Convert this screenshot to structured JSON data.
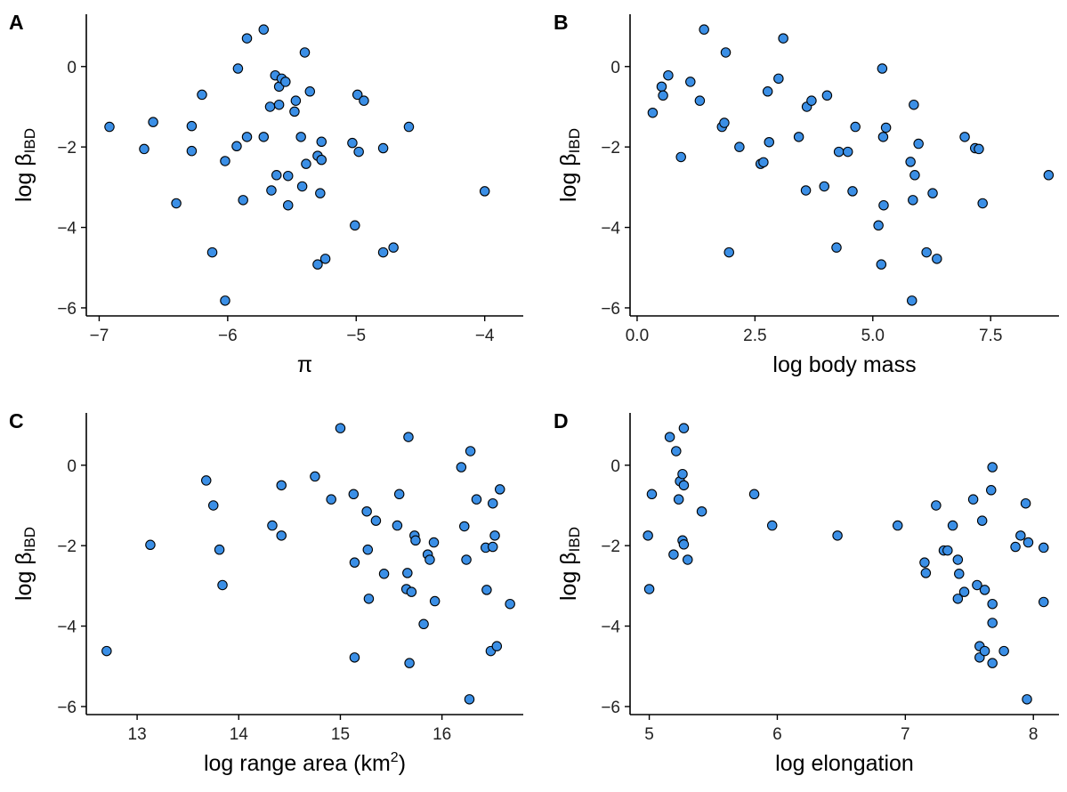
{
  "colors": {
    "point_fill": "#3b8fe6",
    "point_stroke": "#000000"
  },
  "chart_data": [
    {
      "panel": "A",
      "type": "scatter",
      "xlabel_parts": {
        "main": "π"
      },
      "ylabel_parts": {
        "main": "log β",
        "sub": "IBD"
      },
      "xlim": [
        -7.1,
        -3.7
      ],
      "ylim": [
        -6.2,
        1.3
      ],
      "xticks": [
        -7,
        -6,
        -5,
        -4
      ],
      "xtick_labels": [
        "−7",
        "−6",
        "−5",
        "−4"
      ],
      "yticks": [
        0,
        -2,
        -4,
        -6
      ],
      "ytick_labels": [
        "0",
        "−2",
        "−4",
        "−6"
      ],
      "points": [
        [
          -6.92,
          -1.5
        ],
        [
          -6.65,
          -2.05
        ],
        [
          -6.58,
          -1.38
        ],
        [
          -6.4,
          -3.4
        ],
        [
          -6.28,
          -1.48
        ],
        [
          -6.28,
          -2.1
        ],
        [
          -6.2,
          -0.7
        ],
        [
          -6.12,
          -4.62
        ],
        [
          -6.02,
          -5.82
        ],
        [
          -6.02,
          -2.35
        ],
        [
          -5.93,
          -1.98
        ],
        [
          -5.92,
          -0.05
        ],
        [
          -5.88,
          -3.32
        ],
        [
          -5.85,
          -1.75
        ],
        [
          -5.85,
          0.7
        ],
        [
          -5.72,
          0.92
        ],
        [
          -5.72,
          -1.75
        ],
        [
          -5.67,
          -1.0
        ],
        [
          -5.66,
          -3.08
        ],
        [
          -5.63,
          -0.22
        ],
        [
          -5.62,
          -2.7
        ],
        [
          -5.6,
          -0.5
        ],
        [
          -5.6,
          -0.95
        ],
        [
          -5.58,
          -0.3
        ],
        [
          -5.55,
          -0.38
        ],
        [
          -5.53,
          -2.72
        ],
        [
          -5.53,
          -3.45
        ],
        [
          -5.48,
          -1.12
        ],
        [
          -5.47,
          -0.85
        ],
        [
          -5.43,
          -1.75
        ],
        [
          -5.42,
          -2.98
        ],
        [
          -5.4,
          0.35
        ],
        [
          -5.39,
          -2.42
        ],
        [
          -5.36,
          -0.62
        ],
        [
          -5.3,
          -4.92
        ],
        [
          -5.3,
          -2.22
        ],
        [
          -5.28,
          -3.15
        ],
        [
          -5.27,
          -2.32
        ],
        [
          -5.27,
          -1.87
        ],
        [
          -5.24,
          -4.78
        ],
        [
          -5.03,
          -1.9
        ],
        [
          -5.01,
          -3.95
        ],
        [
          -4.99,
          -0.7
        ],
        [
          -4.98,
          -2.12
        ],
        [
          -4.94,
          -0.85
        ],
        [
          -4.79,
          -4.62
        ],
        [
          -4.79,
          -2.03
        ],
        [
          -4.71,
          -4.5
        ],
        [
          -4.59,
          -1.5
        ],
        [
          -4.0,
          -3.1
        ]
      ]
    },
    {
      "panel": "B",
      "type": "scatter",
      "xlabel_parts": {
        "main": "log body mass"
      },
      "ylabel_parts": {
        "main": "log β",
        "sub": "IBD"
      },
      "xlim": [
        -0.15,
        8.95
      ],
      "ylim": [
        -6.2,
        1.3
      ],
      "xticks": [
        0,
        2.5,
        5,
        7.5
      ],
      "xtick_labels": [
        "0.0",
        "2.5",
        "5.0",
        "7.5"
      ],
      "yticks": [
        0,
        -2,
        -4,
        -6
      ],
      "ytick_labels": [
        "0",
        "−2",
        "−4",
        "−6"
      ],
      "points": [
        [
          0.33,
          -1.15
        ],
        [
          0.52,
          -0.5
        ],
        [
          0.55,
          -0.72
        ],
        [
          0.66,
          -0.22
        ],
        [
          0.93,
          -2.25
        ],
        [
          1.13,
          -0.38
        ],
        [
          1.33,
          -0.85
        ],
        [
          1.42,
          0.92
        ],
        [
          1.8,
          -1.5
        ],
        [
          1.85,
          -1.4
        ],
        [
          1.88,
          0.35
        ],
        [
          1.95,
          -4.62
        ],
        [
          2.17,
          -2.0
        ],
        [
          2.62,
          -2.42
        ],
        [
          2.68,
          -2.38
        ],
        [
          2.77,
          -0.62
        ],
        [
          2.8,
          -1.88
        ],
        [
          3.0,
          -0.3
        ],
        [
          3.1,
          0.7
        ],
        [
          3.43,
          -1.75
        ],
        [
          3.58,
          -3.08
        ],
        [
          3.6,
          -1.0
        ],
        [
          3.7,
          -0.85
        ],
        [
          3.97,
          -2.98
        ],
        [
          4.03,
          -0.72
        ],
        [
          4.23,
          -4.5
        ],
        [
          4.28,
          -2.12
        ],
        [
          4.47,
          -2.12
        ],
        [
          4.57,
          -3.1
        ],
        [
          4.63,
          -1.5
        ],
        [
          5.12,
          -3.95
        ],
        [
          5.18,
          -4.92
        ],
        [
          5.2,
          -0.05
        ],
        [
          5.22,
          -1.75
        ],
        [
          5.23,
          -3.45
        ],
        [
          5.28,
          -1.52
        ],
        [
          5.8,
          -2.37
        ],
        [
          5.83,
          -5.82
        ],
        [
          5.85,
          -3.32
        ],
        [
          5.87,
          -0.95
        ],
        [
          5.89,
          -2.7
        ],
        [
          5.97,
          -1.92
        ],
        [
          6.14,
          -4.62
        ],
        [
          6.27,
          -3.15
        ],
        [
          6.36,
          -4.78
        ],
        [
          6.95,
          -1.75
        ],
        [
          7.17,
          -2.03
        ],
        [
          7.25,
          -2.05
        ],
        [
          7.33,
          -3.4
        ],
        [
          8.73,
          -2.7
        ]
      ]
    },
    {
      "panel": "C",
      "type": "scatter",
      "xlabel_parts": {
        "main": "log range area (km",
        "sup": "2",
        "after": ")"
      },
      "ylabel_parts": {
        "main": "log β",
        "sub": "IBD"
      },
      "xlim": [
        12.5,
        16.8
      ],
      "ylim": [
        -6.2,
        1.3
      ],
      "xticks": [
        13,
        14,
        15,
        16
      ],
      "xtick_labels": [
        "13",
        "14",
        "15",
        "16"
      ],
      "yticks": [
        0,
        -2,
        -4,
        -6
      ],
      "ytick_labels": [
        "0",
        "−2",
        "−4",
        "−6"
      ],
      "points": [
        [
          12.7,
          -4.62
        ],
        [
          13.13,
          -1.98
        ],
        [
          13.68,
          -0.38
        ],
        [
          13.75,
          -1.0
        ],
        [
          13.81,
          -2.1
        ],
        [
          13.84,
          -2.98
        ],
        [
          14.33,
          -1.5
        ],
        [
          14.42,
          -0.5
        ],
        [
          14.42,
          -1.75
        ],
        [
          14.75,
          -0.28
        ],
        [
          14.91,
          -0.85
        ],
        [
          15.0,
          0.92
        ],
        [
          15.13,
          -0.72
        ],
        [
          15.14,
          -2.42
        ],
        [
          15.14,
          -4.78
        ],
        [
          15.26,
          -1.15
        ],
        [
          15.27,
          -2.1
        ],
        [
          15.28,
          -3.32
        ],
        [
          15.35,
          -1.38
        ],
        [
          15.43,
          -2.7
        ],
        [
          15.56,
          -1.5
        ],
        [
          15.58,
          -0.72
        ],
        [
          15.65,
          -3.08
        ],
        [
          15.66,
          -2.68
        ],
        [
          15.67,
          0.7
        ],
        [
          15.68,
          -4.92
        ],
        [
          15.7,
          -3.15
        ],
        [
          15.73,
          -1.75
        ],
        [
          15.74,
          -1.87
        ],
        [
          15.82,
          -3.95
        ],
        [
          15.86,
          -2.22
        ],
        [
          15.88,
          -2.35
        ],
        [
          15.92,
          -1.92
        ],
        [
          15.93,
          -3.38
        ],
        [
          16.19,
          -0.05
        ],
        [
          16.22,
          -1.52
        ],
        [
          16.24,
          -2.35
        ],
        [
          16.27,
          -5.82
        ],
        [
          16.28,
          0.35
        ],
        [
          16.34,
          -0.85
        ],
        [
          16.43,
          -2.05
        ],
        [
          16.44,
          -3.1
        ],
        [
          16.48,
          -4.62
        ],
        [
          16.5,
          -2.03
        ],
        [
          16.5,
          -0.95
        ],
        [
          16.52,
          -1.75
        ],
        [
          16.54,
          -4.5
        ],
        [
          16.57,
          -0.6
        ],
        [
          16.67,
          -3.45
        ]
      ]
    },
    {
      "panel": "D",
      "type": "scatter",
      "xlabel_parts": {
        "main": "log elongation"
      },
      "ylabel_parts": {
        "main": "log β",
        "sub": "IBD"
      },
      "xlim": [
        4.85,
        8.2
      ],
      "ylim": [
        -6.2,
        1.3
      ],
      "xticks": [
        5,
        6,
        7,
        8
      ],
      "xtick_labels": [
        "5",
        "6",
        "7",
        "8"
      ],
      "yticks": [
        0,
        -2,
        -4,
        -6
      ],
      "ytick_labels": [
        "0",
        "−2",
        "−4",
        "−6"
      ],
      "points": [
        [
          4.99,
          -1.75
        ],
        [
          5.0,
          -3.08
        ],
        [
          5.02,
          -0.72
        ],
        [
          5.16,
          0.7
        ],
        [
          5.19,
          -2.22
        ],
        [
          5.21,
          0.35
        ],
        [
          5.23,
          -0.85
        ],
        [
          5.24,
          -0.4
        ],
        [
          5.26,
          -1.87
        ],
        [
          5.26,
          -0.22
        ],
        [
          5.27,
          0.92
        ],
        [
          5.27,
          -1.97
        ],
        [
          5.27,
          -0.5
        ],
        [
          5.3,
          -2.35
        ],
        [
          5.41,
          -1.15
        ],
        [
          5.82,
          -0.72
        ],
        [
          5.96,
          -1.5
        ],
        [
          6.47,
          -1.75
        ],
        [
          6.94,
          -1.5
        ],
        [
          7.15,
          -2.42
        ],
        [
          7.16,
          -2.68
        ],
        [
          7.24,
          -1.0
        ],
        [
          7.3,
          -2.12
        ],
        [
          7.33,
          -2.12
        ],
        [
          7.37,
          -1.5
        ],
        [
          7.41,
          -2.35
        ],
        [
          7.41,
          -3.32
        ],
        [
          7.42,
          -2.7
        ],
        [
          7.46,
          -3.15
        ],
        [
          7.53,
          -0.85
        ],
        [
          7.56,
          -2.98
        ],
        [
          7.58,
          -4.5
        ],
        [
          7.58,
          -4.78
        ],
        [
          7.6,
          -1.38
        ],
        [
          7.62,
          -3.1
        ],
        [
          7.62,
          -4.62
        ],
        [
          7.67,
          -0.62
        ],
        [
          7.68,
          -0.05
        ],
        [
          7.68,
          -3.45
        ],
        [
          7.68,
          -3.92
        ],
        [
          7.68,
          -4.92
        ],
        [
          7.77,
          -4.62
        ],
        [
          7.86,
          -2.03
        ],
        [
          7.9,
          -1.75
        ],
        [
          7.94,
          -0.95
        ],
        [
          7.96,
          -1.92
        ],
        [
          8.08,
          -2.05
        ],
        [
          8.08,
          -3.4
        ],
        [
          7.95,
          -5.82
        ]
      ]
    }
  ]
}
